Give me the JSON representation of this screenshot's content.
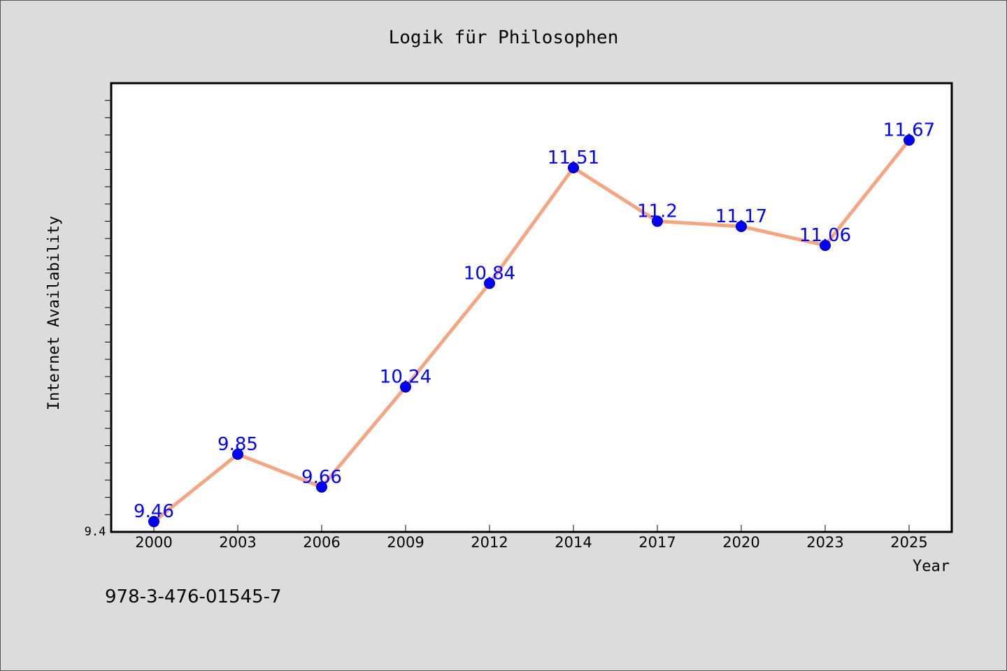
{
  "colors": {
    "background": "#dcdcdc",
    "plot_bg": "#ffffff",
    "line": "#f4a582",
    "marker": "#0000ff",
    "label": "#0000ff",
    "text": "#000000"
  },
  "isbn": "978-3-476-01545-7",
  "chart_data": {
    "type": "line",
    "title": "Logik für Philosophen",
    "xlabel": "Year",
    "ylabel": "Internet Availability",
    "categories": [
      "2000",
      "2003",
      "2006",
      "2009",
      "2012",
      "2014",
      "2017",
      "2020",
      "2023",
      "2025"
    ],
    "values": [
      9.46,
      9.85,
      9.66,
      10.24,
      10.84,
      11.51,
      11.2,
      11.17,
      11.06,
      11.67
    ],
    "data_labels": [
      "9.46",
      "9.85",
      "9.66",
      "10.24",
      "10.84",
      "11.51",
      "11.2",
      "11.17",
      "11.06",
      "11.67"
    ],
    "ylim": [
      9.4,
      12.0
    ],
    "y_tick_label": "9.4",
    "y_minor_tick_step": 0.1,
    "grid": false,
    "legend": "none"
  }
}
